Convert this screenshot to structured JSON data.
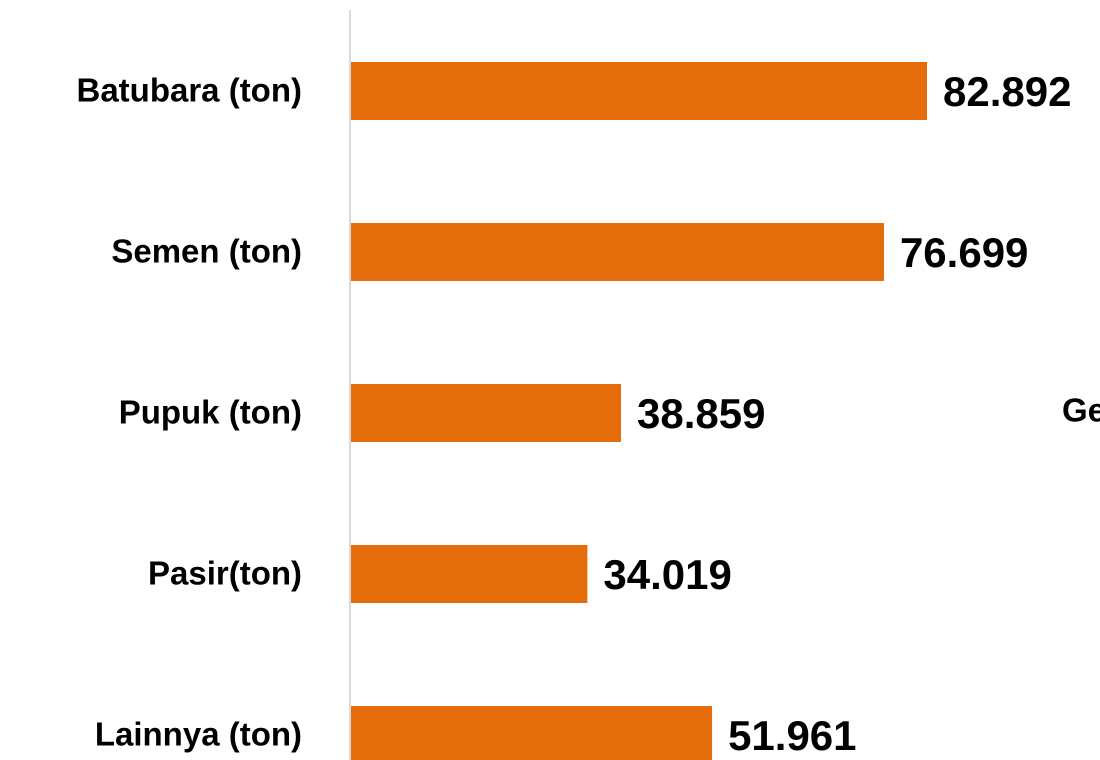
{
  "chart_data": {
    "type": "barh",
    "categories": [
      "Batubara (ton)",
      "Semen (ton)",
      "Pupuk (ton)",
      "Pasir(ton)",
      "Lainnya (ton)"
    ],
    "values": [
      82892,
      76699,
      38859,
      34019,
      51961
    ],
    "value_labels": [
      "82.892",
      "76.699",
      "38.859",
      "34.019",
      "51.961"
    ],
    "color": "#e46c0a",
    "annotation": "Ge"
  }
}
